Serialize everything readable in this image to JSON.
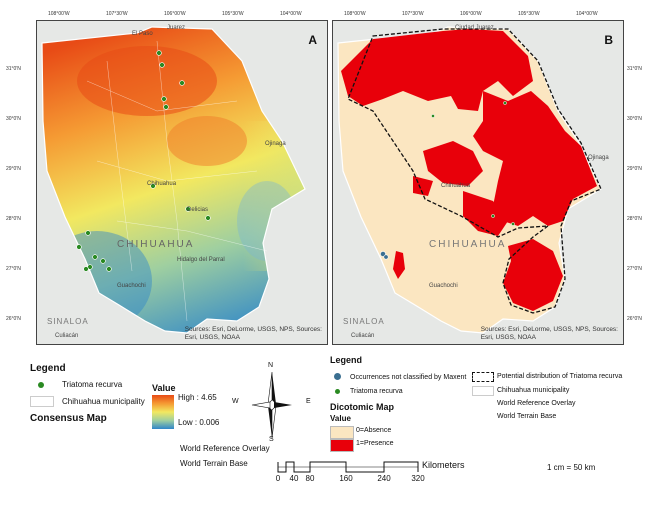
{
  "coords": {
    "top": [
      "108°00'W",
      "107°30'W",
      "106°00'W",
      "105°30'W",
      "104°00'W"
    ],
    "left": [
      "31°0'N",
      "30°0'N",
      "29°0'N",
      "28°0'N",
      "27°0'N",
      "26°0'N"
    ],
    "right": [
      "31°0'N",
      "30°0'N",
      "29°0'N",
      "28°0'N",
      "27°0'N",
      "26°0'N"
    ]
  },
  "panel_a": {
    "label": "A",
    "credits": [
      "Sources: Esri, DeLorme, USGS, NPS, Sources:",
      "Esri, USGS, NOAA"
    ],
    "place_names": {
      "el_paso": "El Paso",
      "juarez": "Juarez",
      "chihuahua_city": "Chihuahua",
      "state_name": "CHIHUAHUA",
      "sinaloa": "SINALOA",
      "ojinaga": "Ojinaga",
      "delicias": "Delicias",
      "parral": "Hidalgo del Parral",
      "guachochi": "Guachochi",
      "culiacan": "Culiacán"
    }
  },
  "panel_b": {
    "label": "B",
    "credits": [
      "Sources: Esri, DeLorme, USGS, NPS, Sources:",
      "Esri, USGS, NOAA"
    ],
    "place_names": {
      "juarez": "Ciudad Juarez",
      "chihuahua_city": "Chihuahua",
      "state_name": "CHIHUAHUA",
      "sinaloa": "SINALOA",
      "ojinaga": "Ojinaga",
      "guachochi": "Guachochi",
      "culiacan": "Culiacán"
    }
  },
  "legend_left": {
    "title": "Legend",
    "species": "Triatoma recurva",
    "municipality": "Chihuahua municipality",
    "consensus_title": "Consensus Map",
    "value_title": "Value",
    "high": "High : 4.65",
    "low": "Low : 0.006",
    "overlay": "World Reference Overlay",
    "terrain": "World Terrain Base"
  },
  "legend_right": {
    "title": "Legend",
    "not_classified": "Occurrences not classified by Maxent",
    "species": "Triatoma recurva",
    "potential": "Potential distribution of Triatoma recurva",
    "municipality": "Chihuahua municipality",
    "overlay": "World Reference Overlay",
    "terrain": "World Terrain Base",
    "dicotomic_title": "Dicotomic Map",
    "value_title": "Value",
    "absence": "0=Absence",
    "presence": "1=Presence"
  },
  "north_arrow": {
    "n": "N",
    "s": "S",
    "e": "E",
    "w": "W"
  },
  "scale": {
    "ticks": [
      "0",
      "40",
      "80",
      "160",
      "240",
      "320"
    ],
    "unit": "Kilometers",
    "ratio": "1 cm = 50 km"
  },
  "colors": {
    "presence": "#e8000a",
    "absence": "#fbe6c1",
    "high": "#e84b16",
    "mid": "#f2e860",
    "low": "#2f86c9",
    "point": "#2a8a22"
  }
}
